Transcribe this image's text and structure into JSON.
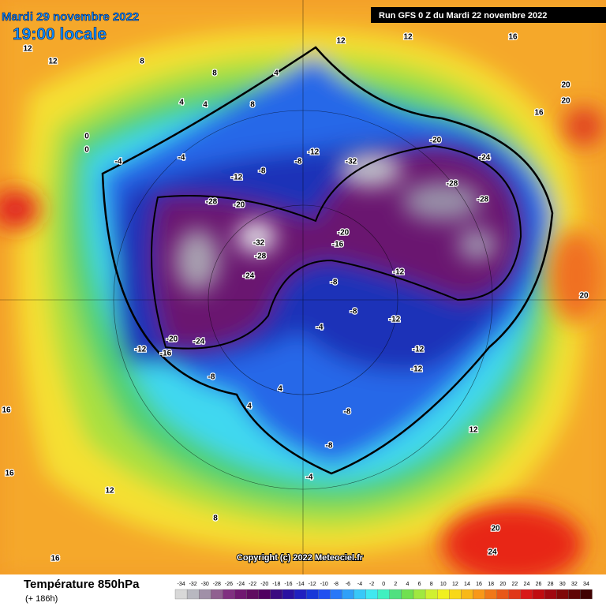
{
  "header": {
    "date": "Mardi 29 novembre 2022",
    "time": "19:00 locale",
    "run": "Run GFS 0 Z du Mardi 22 novembre 2022"
  },
  "copyright": "Copyright (c) 2022 Meteociel.fr",
  "footer": {
    "title": "Température 850hPa",
    "lead": "(+ 186h)"
  },
  "scale": {
    "ticks": [
      -34,
      -32,
      -30,
      -28,
      -26,
      -24,
      -22,
      -20,
      -18,
      -16,
      -14,
      -12,
      -10,
      -8,
      -6,
      -4,
      -2,
      0,
      2,
      4,
      6,
      8,
      10,
      12,
      14,
      16,
      18,
      20,
      22,
      24,
      26,
      28,
      30,
      32,
      34
    ],
    "colors": [
      "#d8d8d8",
      "#b8b8c0",
      "#a090a8",
      "#906090",
      "#803080",
      "#701870",
      "#600c60",
      "#500060",
      "#3a0a80",
      "#2a10a0",
      "#2020c0",
      "#1838d8",
      "#2050f0",
      "#2878f8",
      "#30a0f8",
      "#38c8f8",
      "#40e8f0",
      "#40f0c0",
      "#50e080",
      "#70e050",
      "#a0e840",
      "#d0f030",
      "#f0f020",
      "#f8d818",
      "#f8b818",
      "#f89818",
      "#f07818",
      "#e85818",
      "#e03818",
      "#d81818",
      "#c00c10",
      "#a00810",
      "#800808",
      "#600404",
      "#400202"
    ]
  },
  "labels": [
    12,
    12,
    8,
    8,
    4,
    4,
    4,
    8,
    12,
    12,
    16,
    20,
    20,
    16,
    0,
    -4,
    -4,
    -8,
    -12,
    -12,
    -8,
    -20,
    -24,
    -32,
    -28,
    -28,
    -20,
    -28,
    -32,
    -28,
    -24,
    -20,
    -16,
    -12,
    -8,
    -8,
    -12,
    -4,
    -12,
    -12,
    -16,
    -20,
    -24,
    -12,
    -8,
    4,
    -8,
    -8,
    -4,
    8,
    12,
    16,
    20,
    20,
    24,
    16,
    16,
    12,
    4,
    0
  ]
}
